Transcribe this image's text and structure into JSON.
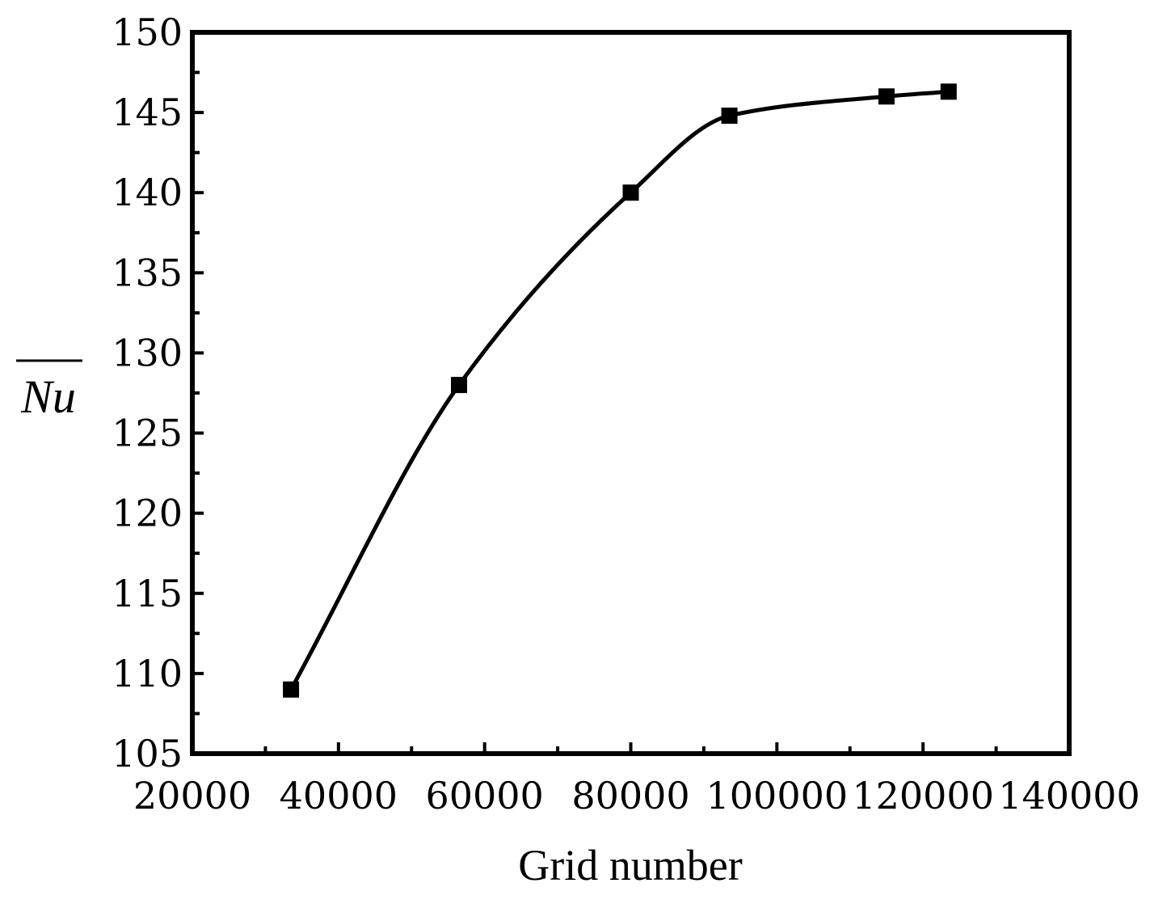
{
  "chart_data": {
    "type": "line",
    "title": "",
    "xlabel": "Grid number",
    "ylabel": "Nu",
    "ylabel_overline": true,
    "xlim": [
      20000,
      140000
    ],
    "ylim": [
      105,
      150
    ],
    "x_ticks": [
      20000,
      40000,
      60000,
      80000,
      100000,
      120000,
      140000
    ],
    "y_ticks": [
      105,
      110,
      115,
      120,
      125,
      130,
      135,
      140,
      145,
      150
    ],
    "grid": false,
    "legend": "none",
    "line_color": "#000000",
    "marker": "square",
    "series": [
      {
        "x": [
          33500,
          56500,
          80000,
          93500,
          115000,
          123500
        ],
        "y": [
          109,
          128,
          140,
          144.8,
          146,
          146.3
        ]
      }
    ]
  }
}
